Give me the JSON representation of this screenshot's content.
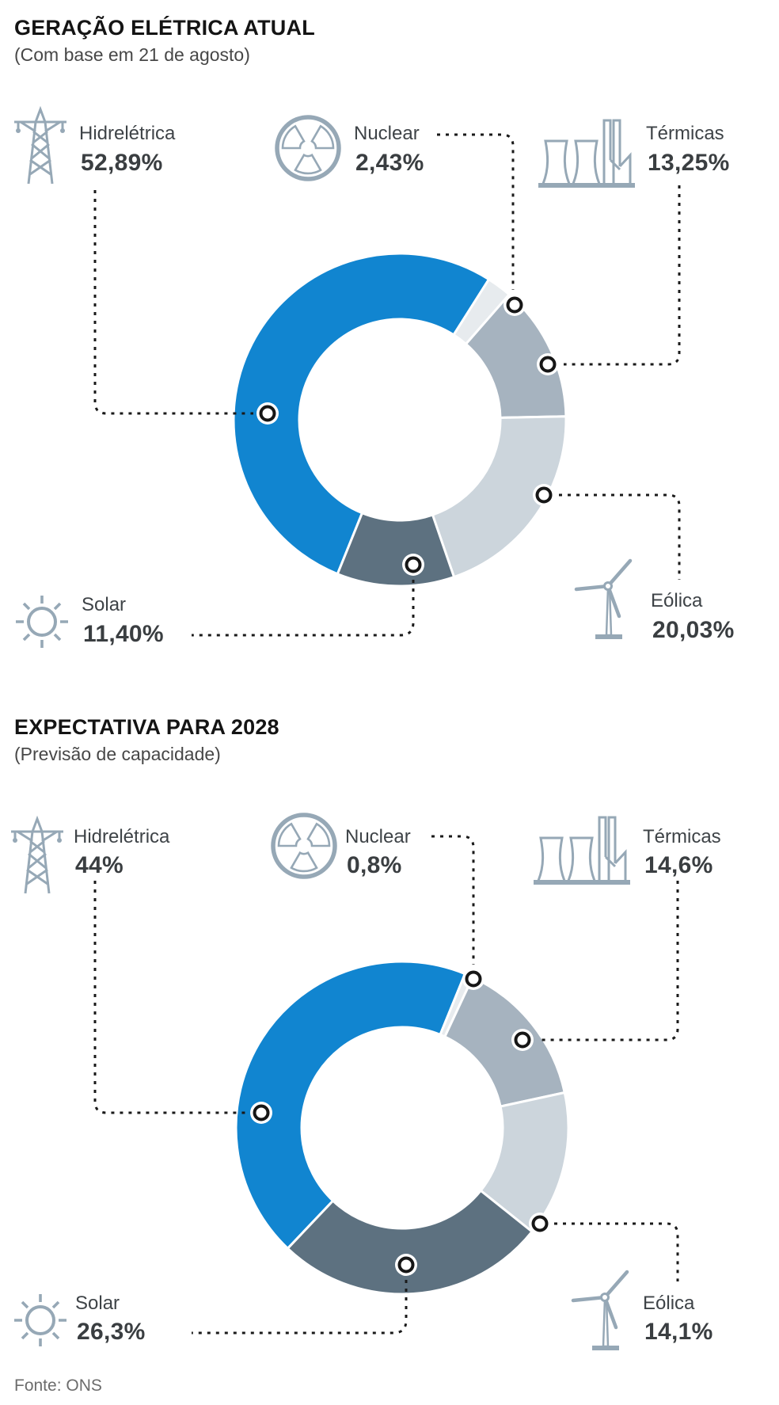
{
  "charts_meta": {
    "footer": "Fonte: ONS"
  },
  "chart_data": [
    {
      "type": "pie",
      "variant": "donut",
      "title": "GERAÇÃO ELÉTRICA ATUAL",
      "subtitle": "(Com base em 21 de agosto)",
      "unit": "%",
      "legend_position": "around",
      "segments": [
        {
          "label": "Hidrelétrica",
          "display": "52,89%",
          "value": 52.89,
          "color": "#1185d0",
          "icon": "transmission-tower-icon"
        },
        {
          "label": "Nuclear",
          "display": "2,43%",
          "value": 2.43,
          "color": "#e7ebee",
          "icon": "radiation-icon"
        },
        {
          "label": "Térmicas",
          "display": "13,25%",
          "value": 13.25,
          "color": "#a6b3bf",
          "icon": "power-plant-icon"
        },
        {
          "label": "Eólica",
          "display": "20,03%",
          "value": 20.03,
          "color": "#ccd5dc",
          "icon": "wind-turbine-icon"
        },
        {
          "label": "Solar",
          "display": "11,40%",
          "value": 11.4,
          "color": "#5d7180",
          "icon": "sun-icon"
        }
      ]
    },
    {
      "type": "pie",
      "variant": "donut",
      "title": "EXPECTATIVA PARA 2028",
      "subtitle": "(Previsão de capacidade)",
      "unit": "%",
      "legend_position": "around",
      "segments": [
        {
          "label": "Hidrelétrica",
          "display": "44%",
          "value": 44.0,
          "color": "#1185d0",
          "icon": "transmission-tower-icon"
        },
        {
          "label": "Nuclear",
          "display": "0,8%",
          "value": 0.8,
          "color": "#e7ebee",
          "icon": "radiation-icon"
        },
        {
          "label": "Térmicas",
          "display": "14,6%",
          "value": 14.6,
          "color": "#a6b3bf",
          "icon": "power-plant-icon"
        },
        {
          "label": "Eólica",
          "display": "14,1%",
          "value": 14.1,
          "color": "#ccd5dc",
          "icon": "wind-turbine-icon"
        },
        {
          "label": "Solar",
          "display": "26,3%",
          "value": 26.3,
          "color": "#5d7180",
          "icon": "sun-icon"
        }
      ]
    }
  ],
  "style_colors": {
    "accent_blue": "#1185d0",
    "icon_stroke": "#96a8b6",
    "leader_line": "#1a1a1a",
    "title_text": "#141414",
    "subtitle_text": "#474747",
    "label_text": "#3e4347",
    "value_text": "#3a3e41",
    "source_text": "#6c6c6c"
  }
}
